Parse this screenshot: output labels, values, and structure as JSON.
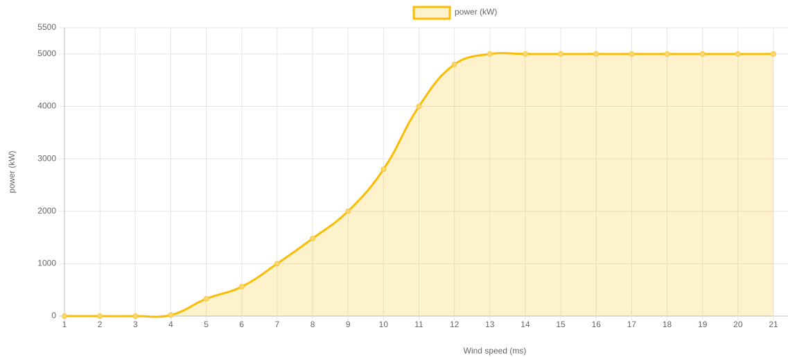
{
  "chart_data": {
    "type": "line",
    "legend_label": "power (kW)",
    "xlabel": "Wind speed (ms)",
    "ylabel": "power (kW)",
    "categories": [
      "1",
      "2",
      "3",
      "4",
      "5",
      "6",
      "7",
      "8",
      "9",
      "10",
      "11",
      "12",
      "13",
      "14",
      "15",
      "16",
      "17",
      "18",
      "19",
      "20",
      "21"
    ],
    "series": [
      {
        "name": "power (kW)",
        "color": "#fbbc05",
        "values": [
          0,
          0,
          0,
          20,
          330,
          560,
          1000,
          1480,
          2000,
          2800,
          4000,
          4800,
          5000,
          5000,
          5000,
          5000,
          5000,
          5000,
          5000,
          5000,
          5000
        ]
      }
    ],
    "ylim": [
      0,
      5500
    ],
    "yticks": [
      0,
      1000,
      2000,
      3000,
      4000,
      5000,
      5500
    ],
    "grid": true,
    "legend": "top",
    "fill": true
  }
}
